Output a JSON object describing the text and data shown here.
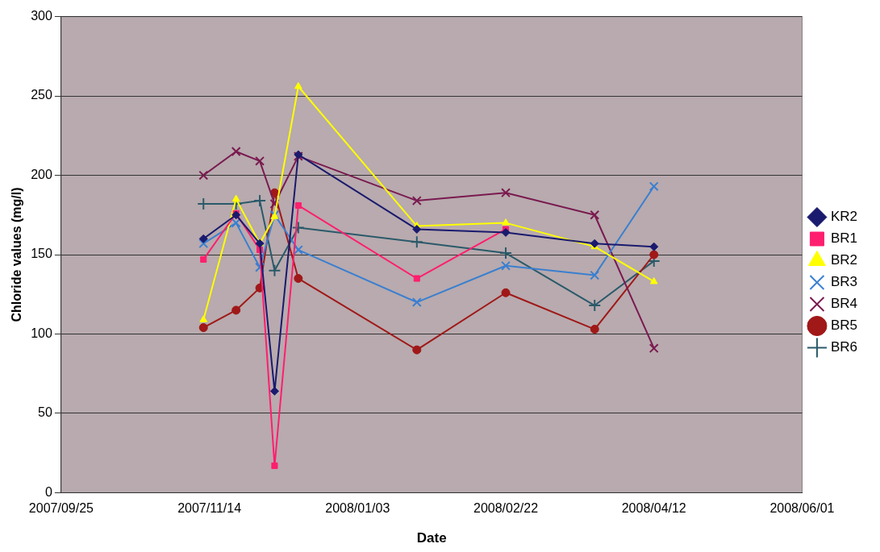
{
  "chart_data": {
    "type": "line",
    "xlabel": "Date",
    "ylabel": "Chloride values (mg/l)",
    "x": [
      "2007-11-12",
      "2007-11-23",
      "2007-12-01",
      "2007-12-06",
      "2007-12-14",
      "2008-01-23",
      "2008-02-22",
      "2008-03-23",
      "2008-04-12"
    ],
    "series": [
      {
        "name": "KR2",
        "color": "#1a1a6e",
        "marker": "diamond",
        "values": [
          160,
          175,
          157,
          64,
          213,
          166,
          164,
          157,
          155
        ]
      },
      {
        "name": "BR1",
        "color": "#ff1f6e",
        "marker": "square",
        "values": [
          147,
          176,
          153,
          17,
          181,
          135,
          166,
          null,
          null
        ]
      },
      {
        "name": "BR2",
        "color": "#ffff00",
        "marker": "triangle",
        "values": [
          109,
          185,
          157,
          174,
          256,
          168,
          170,
          155,
          133
        ]
      },
      {
        "name": "BR3",
        "color": "#3a7fd0",
        "marker": "cross",
        "values": [
          157,
          170,
          142,
          175,
          153,
          120,
          143,
          137,
          193
        ]
      },
      {
        "name": "BR4",
        "color": "#7a1a50",
        "marker": "cross",
        "values": [
          200,
          215,
          209,
          182,
          212,
          184,
          189,
          175,
          91
        ]
      },
      {
        "name": "BR5",
        "color": "#a01818",
        "marker": "circle",
        "values": [
          104,
          115,
          129,
          189,
          135,
          90,
          126,
          103,
          150
        ]
      },
      {
        "name": "BR6",
        "color": "#2a5a6a",
        "marker": "cross",
        "values": [
          182,
          182,
          184,
          140,
          167,
          158,
          151,
          118,
          146
        ]
      }
    ],
    "xlim": [
      "2007-09-25",
      "2008-06-01"
    ],
    "xticks": [
      {
        "value": "2007-09-25",
        "label": "2007/09/25"
      },
      {
        "value": "2007-11-14",
        "label": "2007/11/14"
      },
      {
        "value": "2008-01-03",
        "label": "2008/01/03"
      },
      {
        "value": "2008-02-22",
        "label": "2008/02/22"
      },
      {
        "value": "2008-04-12",
        "label": "2008/04/12"
      },
      {
        "value": "2008-06-01",
        "label": "2008/06/01"
      }
    ],
    "ylim": [
      0,
      300
    ],
    "yticks": [
      0,
      50,
      100,
      150,
      200,
      250,
      300
    ],
    "grid": "y",
    "legend": "right"
  }
}
